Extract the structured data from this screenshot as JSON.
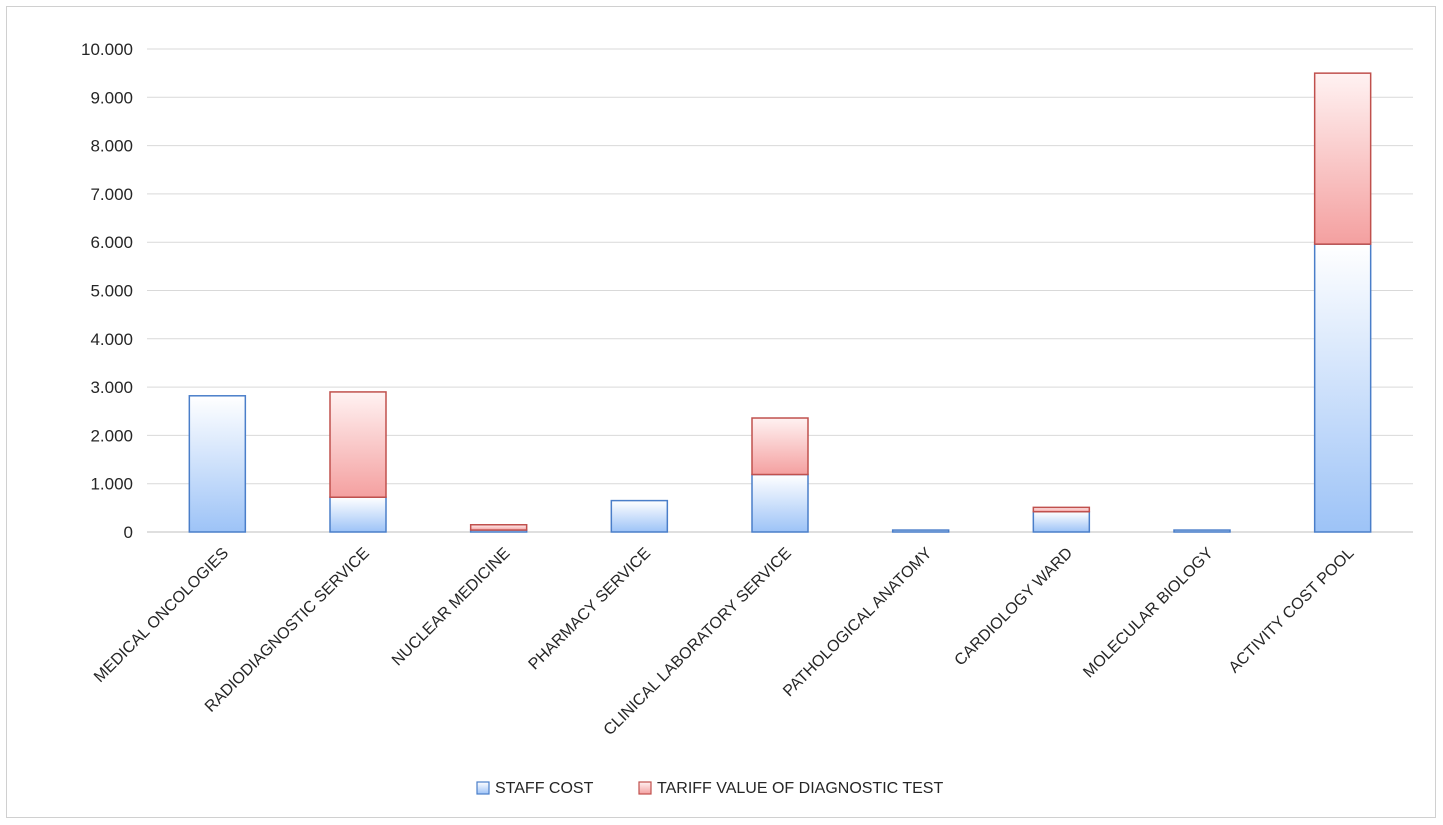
{
  "chart_data": {
    "type": "bar",
    "stacked": true,
    "categories": [
      "MEDICAL ONCOLOGIES",
      "RADIODIAGNOSTIC SERVICE",
      "NUCLEAR MEDICINE",
      "PHARMACY SERVICE",
      "CLINICAL LABORATORY SERVICE",
      "PATHOLOGICAL ANATOMY",
      "CARDIOLOGY WARD",
      "MOLECULAR BIOLOGY",
      "ACTIVITY COST POOL"
    ],
    "series": [
      {
        "name": "STAFF COST",
        "values": [
          2820,
          720,
          40,
          650,
          1190,
          40,
          420,
          40,
          5960
        ],
        "color": "#9dc3f7"
      },
      {
        "name": "TARIFF VALUE OF DIAGNOSTIC TEST",
        "values": [
          0,
          2180,
          110,
          0,
          1170,
          0,
          90,
          0,
          3540
        ],
        "color": "#f4a0a0"
      }
    ],
    "ylim": [
      0,
      10000
    ],
    "yticks": [
      0,
      1000,
      2000,
      3000,
      4000,
      5000,
      6000,
      7000,
      8000,
      9000,
      10000
    ],
    "ytick_labels": [
      "0",
      "1.000",
      "2.000",
      "3.000",
      "4.000",
      "5.000",
      "6.000",
      "7.000",
      "8.000",
      "9.000",
      "10.000"
    ],
    "xlabel": "",
    "ylabel": "",
    "title": "",
    "grid": true,
    "legend_position": "bottom"
  }
}
